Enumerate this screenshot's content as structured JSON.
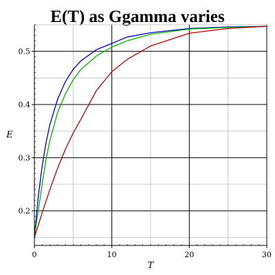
{
  "chart_data": {
    "type": "line",
    "title": "E(T) as Ggamma varies",
    "xlabel": "T",
    "ylabel": "E",
    "xlim": [
      0,
      30
    ],
    "ylim": [
      0.135,
      0.55
    ],
    "x_ticks": [
      0,
      10,
      20,
      30
    ],
    "y_ticks": [
      0.2,
      0.3,
      0.4,
      0.5
    ],
    "x_minor_step": 5,
    "y_minor_step": 0.05,
    "grid": true,
    "legend": "none",
    "series": [
      {
        "color": "#0000c8",
        "x": [
          0,
          0.5,
          1,
          1.5,
          2,
          3,
          4,
          5,
          6,
          8,
          10,
          12,
          15,
          20,
          25,
          30
        ],
        "values": [
          0.15,
          0.226,
          0.284,
          0.328,
          0.362,
          0.41,
          0.443,
          0.466,
          0.482,
          0.503,
          0.515,
          0.527,
          0.535,
          0.543,
          0.546,
          0.547
        ]
      },
      {
        "color": "#00b400",
        "x": [
          0,
          0.5,
          1,
          1.5,
          2,
          3,
          4,
          5,
          6,
          8,
          10,
          12,
          15,
          20,
          25,
          30
        ],
        "values": [
          0.15,
          0.2,
          0.25,
          0.296,
          0.332,
          0.385,
          0.42,
          0.446,
          0.466,
          0.491,
          0.508,
          0.52,
          0.532,
          0.542,
          0.545,
          0.547
        ]
      },
      {
        "color": "#b40000",
        "x": [
          0,
          1,
          2,
          3,
          4,
          5,
          6,
          8,
          10,
          12,
          15,
          20,
          25,
          30
        ],
        "values": [
          0.15,
          0.196,
          0.24,
          0.28,
          0.316,
          0.346,
          0.372,
          0.426,
          0.462,
          0.485,
          0.51,
          0.534,
          0.543,
          0.547
        ]
      }
    ]
  }
}
